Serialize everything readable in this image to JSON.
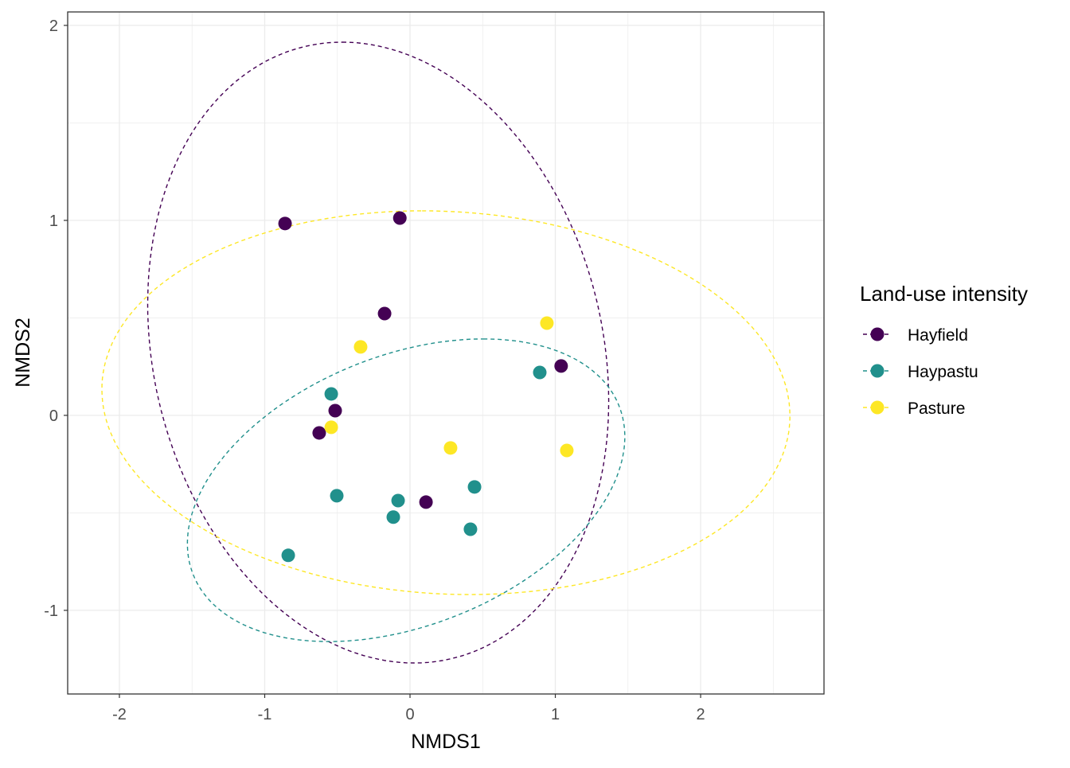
{
  "chart_data": {
    "type": "scatter",
    "xlabel": "NMDS1",
    "ylabel": "NMDS2",
    "xlim": [
      -2.356,
      2.849
    ],
    "ylim": [
      -1.429,
      2.069
    ],
    "x_ticks": [
      -2,
      -1,
      0,
      1,
      2
    ],
    "y_ticks": [
      -1,
      0,
      1,
      2
    ],
    "grid": true,
    "legend": {
      "title": "Land-use intensity",
      "placement": "right"
    },
    "series": [
      {
        "name": "Hayfield",
        "color": "#440154",
        "points": [
          [
            -0.86,
            0.984
          ],
          [
            -0.07,
            1.012
          ],
          [
            -0.175,
            0.522
          ],
          [
            1.04,
            0.253
          ],
          [
            -0.515,
            0.024
          ],
          [
            -0.625,
            -0.09
          ],
          [
            0.11,
            -0.445
          ]
        ],
        "ellipse": {
          "center": [
            -0.219,
            0.322
          ],
          "axis_a": [
            -0.247,
            1.592
          ],
          "axis_b": [
            1.567,
            0
          ]
        }
      },
      {
        "name": "Haypastu",
        "color": "#21908C",
        "points": [
          [
            -0.542,
            0.11
          ],
          [
            0.893,
            0.22
          ],
          [
            -0.504,
            -0.412
          ],
          [
            -0.082,
            -0.437
          ],
          [
            -0.115,
            -0.522
          ],
          [
            0.444,
            -0.367
          ],
          [
            0.416,
            -0.584
          ],
          [
            -0.838,
            -0.718
          ]
        ],
        "ellipse": {
          "center": [
            -0.027,
            -0.384
          ],
          "axis_a": [
            0.532,
            0.776
          ],
          "axis_b": [
            1.408,
            0
          ]
        }
      },
      {
        "name": "Pasture",
        "color": "#FDE725",
        "points": [
          [
            -0.34,
            0.351
          ],
          [
            0.942,
            0.473
          ],
          [
            -0.542,
            -0.061
          ],
          [
            0.279,
            -0.167
          ],
          [
            1.079,
            -0.18
          ]
        ],
        "ellipse": {
          "center": [
            0.247,
            0.065
          ],
          "axis_a": [
            -0.164,
            0.984
          ],
          "axis_b": [
            2.362,
            0
          ]
        }
      }
    ]
  }
}
